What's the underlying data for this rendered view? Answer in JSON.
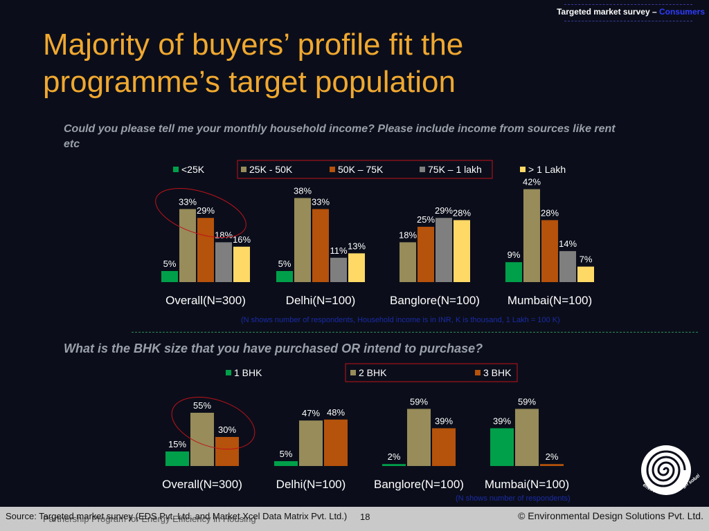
{
  "header": {
    "tag_prefix": "Targeted market survey – ",
    "tag_accent": "Consumers"
  },
  "title": "Majority of buyers’ profile fit the programme’s target population",
  "question1": "Could you please tell me your monthly household income? Please include income from sources like rent etc",
  "note1": "(N shows number of respondents, Household income is in INR, K is thousand, 1 Lakh = 100 K)",
  "question2": "What is the BHK size that you have purchased OR intend to purchase?",
  "note2": "(N shows number of respondents)",
  "footer": {
    "source": "Source: Targeted market survey (EDS Pvt. Ltd. and Market Xcel Data Matrix Pvt. Ltd.)",
    "program": "Partnership Program for Energy Efficiency in Housing",
    "page": "18",
    "copyright": "© Environmental Design Solutions Pvt. Ltd."
  },
  "logo_text": "environmental design solutions",
  "colors": {
    "green": "#00a04a",
    "khaki": "#978c5a",
    "rust": "#b5520b",
    "gray": "#7f7f7f",
    "yellow": "#ffd966",
    "title": "#f0a830",
    "highlight": "#c0121b"
  },
  "chart_data": [
    {
      "type": "bar",
      "categories": [
        "Overall(N=300)",
        "Delhi(N=100)",
        "Banglore(N=100)",
        "Mumbai(N=100)"
      ],
      "series": [
        {
          "name": "<25K",
          "values": [
            5,
            5,
            null,
            9
          ]
        },
        {
          "name": "25K - 50K",
          "values": [
            33,
            38,
            18,
            42
          ]
        },
        {
          "name": "50K – 75K",
          "values": [
            29,
            33,
            25,
            28
          ]
        },
        {
          "name": "75K – 1 lakh",
          "values": [
            18,
            11,
            29,
            14
          ]
        },
        {
          "name": "> 1 Lakh",
          "values": [
            16,
            13,
            28,
            7
          ]
        }
      ],
      "data_labels": "percent",
      "legend": "top"
    },
    {
      "type": "bar",
      "categories": [
        "Overall(N=300)",
        "Delhi(N=100)",
        "Banglore(N=100)",
        "Mumbai(N=100)"
      ],
      "series": [
        {
          "name": "1 BHK",
          "values": [
            15,
            5,
            2,
            39
          ]
        },
        {
          "name": "2 BHK",
          "values": [
            55,
            47,
            59,
            59
          ]
        },
        {
          "name": "3 BHK",
          "values": [
            30,
            48,
            39,
            2
          ]
        }
      ],
      "data_labels": "percent",
      "legend": "top"
    }
  ]
}
